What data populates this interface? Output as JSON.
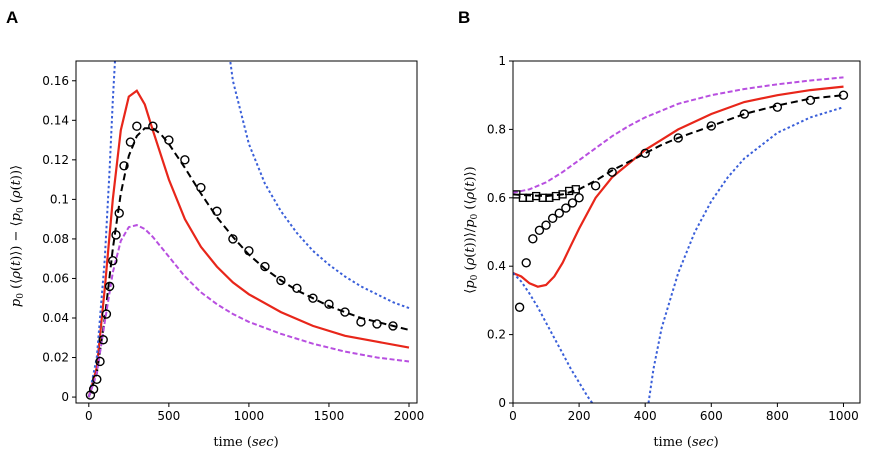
{
  "chart_data": [
    {
      "panel": "A",
      "type": "line",
      "xlabel": "time (sec)",
      "ylabel": "p0(⟨ρ(t)⟩) − ⟨p0(ρ(t))⟩",
      "xlim": [
        -80,
        2050
      ],
      "ylim": [
        -0.003,
        0.17
      ],
      "xticks": [
        0,
        500,
        1000,
        1500,
        2000
      ],
      "yticks": [
        0,
        0.02,
        0.04,
        0.06,
        0.08,
        0.1,
        0.12,
        0.14,
        0.16
      ],
      "ytick_labels": [
        "0",
        "0.02",
        "0.04",
        "0.06",
        "0.08",
        "0.1",
        "0.12",
        "0.14",
        "0.16"
      ],
      "grid": false,
      "series": [
        {
          "style": "solid",
          "color": "#e8261a",
          "x": [
            0,
            50,
            100,
            150,
            200,
            250,
            300,
            350,
            400,
            500,
            600,
            700,
            800,
            900,
            1000,
            1200,
            1400,
            1600,
            1800,
            2000
          ],
          "y": [
            0,
            0.015,
            0.055,
            0.1,
            0.135,
            0.152,
            0.155,
            0.148,
            0.135,
            0.11,
            0.09,
            0.076,
            0.066,
            0.058,
            0.052,
            0.043,
            0.036,
            0.031,
            0.028,
            0.025
          ]
        },
        {
          "style": "dashed",
          "color": "#000000",
          "x": [
            0,
            50,
            100,
            150,
            200,
            250,
            300,
            350,
            400,
            450,
            500,
            600,
            700,
            800,
            900,
            1000,
            1100,
            1200,
            1300,
            1400,
            1500,
            1600,
            1700,
            1800,
            1900,
            2000
          ],
          "y": [
            0,
            0.012,
            0.04,
            0.075,
            0.103,
            0.122,
            0.132,
            0.136,
            0.136,
            0.133,
            0.128,
            0.116,
            0.103,
            0.091,
            0.081,
            0.072,
            0.065,
            0.059,
            0.054,
            0.05,
            0.046,
            0.043,
            0.04,
            0.038,
            0.036,
            0.034
          ]
        },
        {
          "style": "dotted",
          "color": "#3a5fd9",
          "x": [
            0,
            50,
            100,
            130,
            150,
            165
          ],
          "y": [
            0,
            0.02,
            0.07,
            0.115,
            0.15,
            0.172
          ]
        },
        {
          "style": "dotted",
          "color": "#3a5fd9",
          "x": [
            880,
            900,
            1000,
            1100,
            1200,
            1300,
            1400,
            1500,
            1600,
            1700,
            1800,
            1900,
            2000
          ],
          "y": [
            0.172,
            0.16,
            0.128,
            0.108,
            0.094,
            0.083,
            0.074,
            0.067,
            0.061,
            0.056,
            0.052,
            0.048,
            0.045
          ]
        },
        {
          "style": "dashdot",
          "color": "#b84fe0",
          "x": [
            0,
            50,
            100,
            150,
            200,
            250,
            300,
            350,
            400,
            500,
            600,
            700,
            800,
            900,
            1000,
            1200,
            1400,
            1600,
            1800,
            2000
          ],
          "y": [
            0,
            0.012,
            0.038,
            0.063,
            0.079,
            0.086,
            0.087,
            0.085,
            0.081,
            0.071,
            0.061,
            0.053,
            0.047,
            0.042,
            0.038,
            0.032,
            0.027,
            0.023,
            0.02,
            0.018
          ]
        }
      ],
      "markers": [
        {
          "shape": "circle",
          "x": [
            10,
            30,
            50,
            70,
            90,
            110,
            130,
            150,
            170,
            190,
            220,
            260,
            300,
            400,
            500,
            600,
            700,
            800,
            900,
            1000,
            1100,
            1200,
            1300,
            1400,
            1500,
            1600,
            1700,
            1800,
            1900
          ],
          "y": [
            0.001,
            0.004,
            0.009,
            0.018,
            0.029,
            0.042,
            0.056,
            0.069,
            0.082,
            0.093,
            0.117,
            0.129,
            0.137,
            0.137,
            0.13,
            0.12,
            0.106,
            0.094,
            0.08,
            0.074,
            0.066,
            0.059,
            0.055,
            0.05,
            0.047,
            0.043,
            0.038,
            0.037,
            0.036
          ]
        }
      ]
    },
    {
      "panel": "B",
      "type": "line",
      "xlabel": "time (sec)",
      "ylabel": "⟨p0(ρ(t))⟩/p0(⟨ρ(t)⟩)",
      "xlim": [
        0,
        1050
      ],
      "ylim": [
        0,
        1
      ],
      "xticks": [
        0,
        200,
        400,
        600,
        800,
        1000
      ],
      "yticks": [
        0,
        0.2,
        0.4,
        0.6,
        0.8,
        1
      ],
      "ytick_labels": [
        "0",
        "0.2",
        "0.4",
        "0.6",
        "0.8",
        "1"
      ],
      "grid": false,
      "series": [
        {
          "style": "solid",
          "color": "#e8261a",
          "x": [
            0,
            25,
            50,
            75,
            100,
            125,
            150,
            175,
            200,
            250,
            300,
            350,
            400,
            450,
            500,
            600,
            700,
            800,
            900,
            1000
          ],
          "y": [
            0.38,
            0.37,
            0.35,
            0.34,
            0.345,
            0.37,
            0.41,
            0.46,
            0.51,
            0.6,
            0.66,
            0.7,
            0.74,
            0.77,
            0.8,
            0.845,
            0.88,
            0.9,
            0.915,
            0.925
          ]
        },
        {
          "style": "dashed",
          "color": "#000000",
          "x": [
            0,
            50,
            100,
            150,
            200,
            250,
            300,
            350,
            400,
            450,
            500,
            600,
            700,
            800,
            900,
            1000
          ],
          "y": [
            0.61,
            0.607,
            0.605,
            0.61,
            0.625,
            0.65,
            0.68,
            0.705,
            0.73,
            0.755,
            0.775,
            0.81,
            0.845,
            0.87,
            0.89,
            0.9
          ]
        },
        {
          "style": "dotted",
          "color": "#3a5fd9",
          "x": [
            0,
            25,
            50,
            75,
            100,
            125,
            150,
            175,
            200,
            225,
            240
          ],
          "y": [
            0.38,
            0.355,
            0.32,
            0.28,
            0.235,
            0.19,
            0.145,
            0.1,
            0.06,
            0.02,
            0
          ]
        },
        {
          "style": "dotted",
          "color": "#3a5fd9",
          "x": [
            410,
            425,
            450,
            500,
            550,
            600,
            650,
            700,
            800,
            900,
            1000
          ],
          "y": [
            0,
            0.1,
            0.22,
            0.38,
            0.5,
            0.59,
            0.66,
            0.715,
            0.79,
            0.835,
            0.865
          ]
        },
        {
          "style": "dashdot",
          "color": "#b84fe0",
          "x": [
            0,
            50,
            100,
            150,
            200,
            250,
            300,
            350,
            400,
            450,
            500,
            600,
            700,
            800,
            900,
            1000
          ],
          "y": [
            0.615,
            0.625,
            0.645,
            0.675,
            0.71,
            0.745,
            0.78,
            0.81,
            0.835,
            0.855,
            0.875,
            0.9,
            0.918,
            0.932,
            0.943,
            0.952
          ]
        }
      ],
      "markers": [
        {
          "shape": "circle",
          "x": [
            20,
            40,
            60,
            80,
            100,
            120,
            140,
            160,
            180,
            200,
            250,
            300,
            400,
            500,
            600,
            700,
            800,
            900,
            1000
          ],
          "y": [
            0.28,
            0.41,
            0.48,
            0.505,
            0.52,
            0.54,
            0.555,
            0.57,
            0.585,
            0.6,
            0.635,
            0.675,
            0.73,
            0.775,
            0.81,
            0.845,
            0.865,
            0.885,
            0.9
          ]
        },
        {
          "shape": "square",
          "x": [
            10,
            30,
            50,
            70,
            90,
            110,
            130,
            150,
            170,
            190
          ],
          "y": [
            0.61,
            0.6,
            0.6,
            0.605,
            0.6,
            0.6,
            0.605,
            0.61,
            0.62,
            0.625
          ]
        }
      ]
    }
  ]
}
